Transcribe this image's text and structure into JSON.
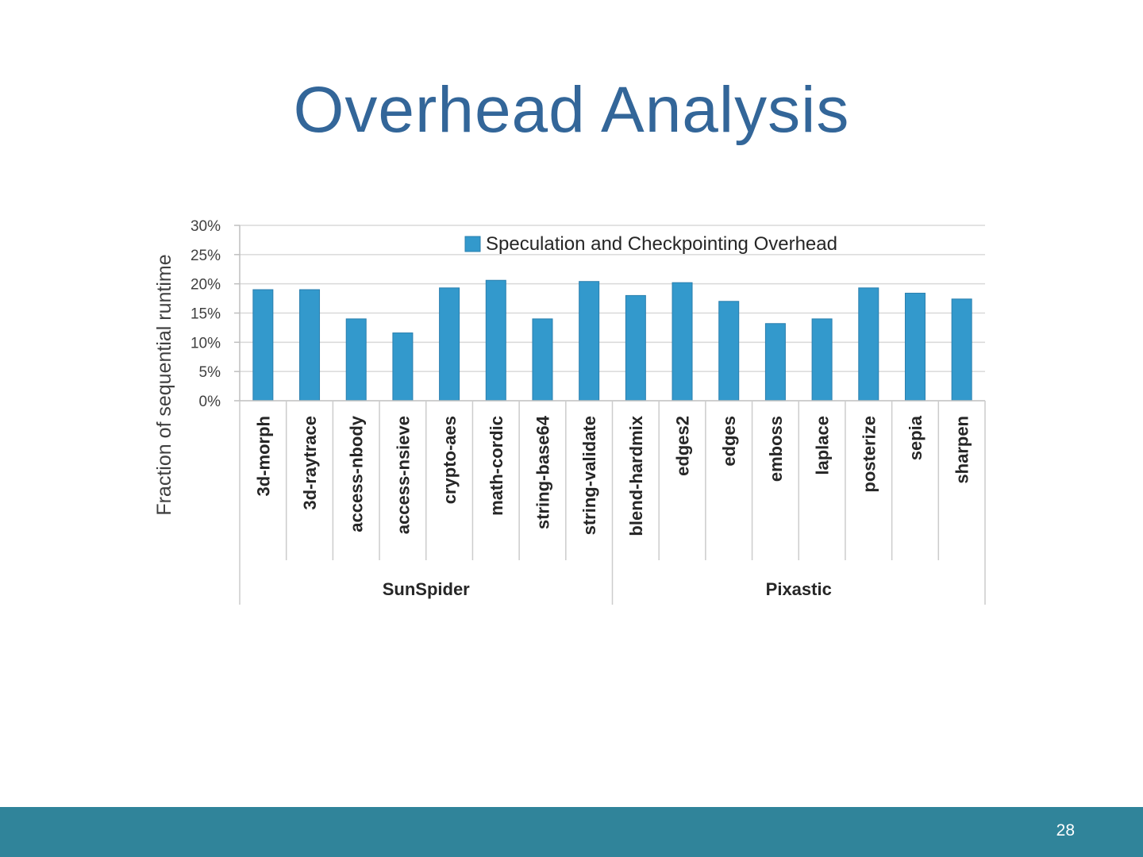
{
  "slide": {
    "title": "Overhead Analysis",
    "page_number": "28"
  },
  "chart_data": {
    "type": "bar",
    "ylabel": "Fraction of sequential runtime",
    "xlabel": "",
    "ylim": [
      0,
      30
    ],
    "y_ticks": [
      "0%",
      "5%",
      "10%",
      "15%",
      "20%",
      "25%",
      "30%"
    ],
    "grid": true,
    "legend_position": "top-right",
    "bar_color": "#3399cc",
    "categories": [
      "3d-morph",
      "3d-raytrace",
      "access-nbody",
      "access-nsieve",
      "crypto-aes",
      "math-cordic",
      "string-base64",
      "string-validate",
      "blend-hardmix",
      "edges2",
      "edges",
      "emboss",
      "laplace",
      "posterize",
      "sepia",
      "sharpen"
    ],
    "groups": [
      {
        "name": "SunSpider",
        "count": 8
      },
      {
        "name": "Pixastic",
        "count": 8
      }
    ],
    "series": [
      {
        "name": "Speculation and Checkpointing Overhead",
        "values": [
          19.0,
          19.0,
          14.0,
          11.6,
          19.3,
          20.6,
          14.0,
          20.4,
          18.0,
          20.2,
          17.0,
          13.2,
          14.0,
          19.3,
          18.4,
          17.4
        ]
      }
    ]
  }
}
